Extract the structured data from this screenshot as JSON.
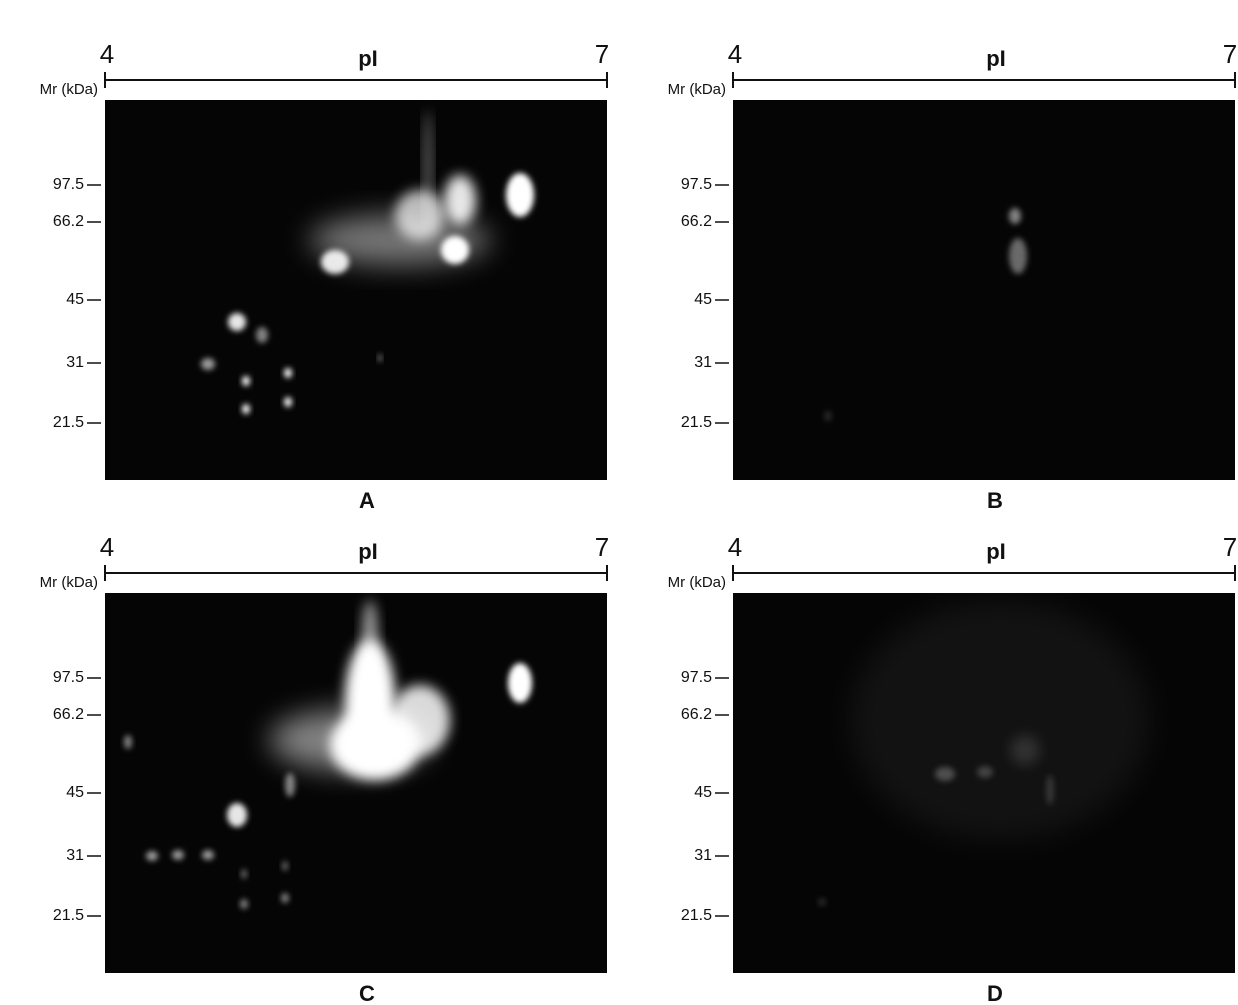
{
  "panels": [
    {
      "label": "A",
      "axis_label": "pI",
      "axis_start": "4",
      "axis_end": "7",
      "mr_label": "Mr (kDa)",
      "markers": [
        "97.5",
        "66.2",
        "45",
        "31",
        "21.5"
      ]
    },
    {
      "label": "B",
      "axis_label": "pI",
      "axis_start": "4",
      "axis_end": "7",
      "mr_label": "Mr (kDa)",
      "markers": [
        "97.5",
        "66.2",
        "45",
        "31",
        "21.5"
      ]
    },
    {
      "label": "C",
      "axis_label": "pI",
      "axis_start": "4",
      "axis_end": "7",
      "mr_label": "Mr (kDa)",
      "markers": [
        "97.5",
        "66.2",
        "45",
        "31",
        "21.5"
      ]
    },
    {
      "label": "D",
      "axis_label": "pI",
      "axis_start": "4",
      "axis_end": "7",
      "mr_label": "Mr (kDa)",
      "markers": [
        "97.5",
        "66.2",
        "45",
        "31",
        "21.5"
      ]
    }
  ]
}
